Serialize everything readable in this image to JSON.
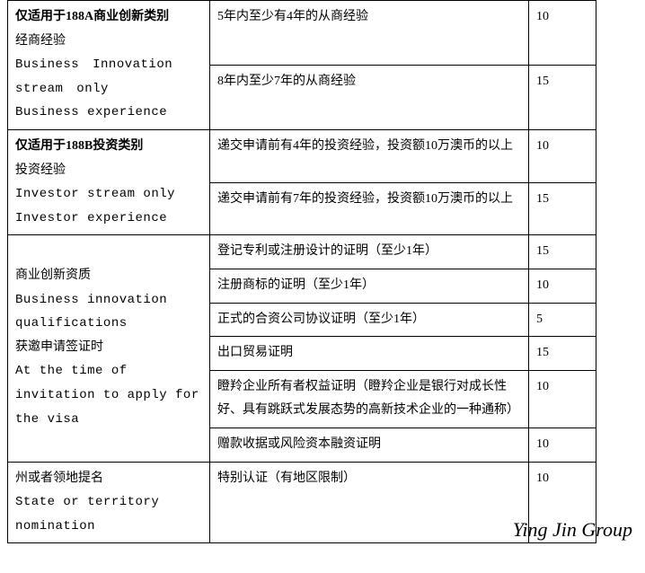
{
  "table": {
    "sections": [
      {
        "category": {
          "cn_bold": "仅适用于188A商业创新类别",
          "cn_sub": "经商经验",
          "en_1": "Business Innovation stream only",
          "en_2": "Business experience"
        },
        "rows": [
          {
            "desc": "5年内至少有4年的从商经验",
            "pts": "10"
          },
          {
            "desc": "8年内至少7年的从商经验",
            "pts": "15"
          }
        ]
      },
      {
        "category": {
          "cn_bold": "仅适用于188B投资类别",
          "cn_sub": "投资经验",
          "en_1": "Investor stream only Investor experience",
          "en_2": ""
        },
        "rows": [
          {
            "desc": "递交申请前有4年的投资经验，投资额10万澳币的以上",
            "pts": "10"
          },
          {
            "desc": "递交申请前有7年的投资经验，投资额10万澳币的以上",
            "pts": "15"
          }
        ]
      },
      {
        "category": {
          "cn_bold": "",
          "cn_sub": "商业创新资质",
          "en_1": "Business innovation qualifications",
          "cn_sub2": "获邀申请签证时",
          "en_2": "At the time of invitation to apply for the visa"
        },
        "rows": [
          {
            "desc": "登记专利或注册设计的证明（至少1年）",
            "pts": "15"
          },
          {
            "desc": "注册商标的证明（至少1年）",
            "pts": "10"
          },
          {
            "desc": "正式的合资公司协议证明（至少1年）",
            "pts": "5"
          },
          {
            "desc": "出口贸易证明",
            "pts": "15"
          },
          {
            "desc": "瞪羚企业所有者权益证明（瞪羚企业是银行对成长性好、具有跳跃式发展态势的高新技术企业的一种通称）",
            "pts": "10"
          },
          {
            "desc": "赠款收据或风险资本融资证明",
            "pts": "10"
          }
        ]
      },
      {
        "category": {
          "cn_bold": "",
          "cn_sub": "州或者领地提名",
          "en_1": "State or territory nomination",
          "en_2": ""
        },
        "rows": [
          {
            "desc": "特别认证（有地区限制）",
            "pts": "10"
          }
        ]
      }
    ]
  },
  "watermark": "Ying Jin Group"
}
